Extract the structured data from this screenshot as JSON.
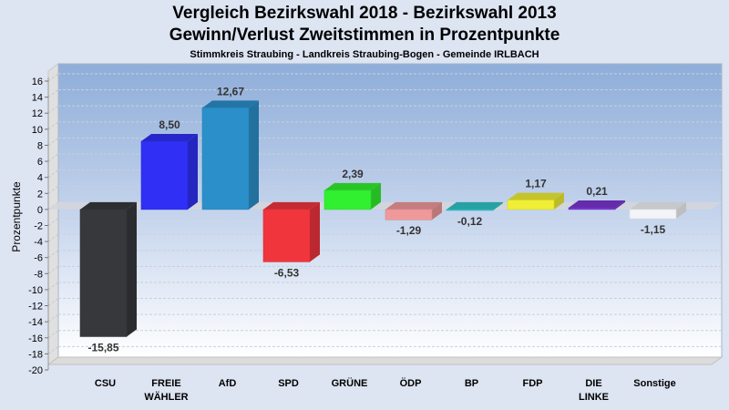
{
  "header": {
    "title_line1": "Vergleich Bezirkswahl 2018 - Bezirkswahl 2013",
    "title_line2": "Gewinn/Verlust Zweitstimmen in Prozentpunkte",
    "subtitle": "Stimmkreis Straubing - Landkreis Straubing-Bogen - Gemeinde IRLBACH"
  },
  "chart_data": {
    "type": "bar",
    "title": "Vergleich Bezirkswahl 2018 - Bezirkswahl 2013 / Gewinn/Verlust Zweitstimmen in Prozentpunkte",
    "subtitle": "Stimmkreis Straubing - Landkreis Straubing-Bogen - Gemeinde IRLBACH",
    "xlabel": "",
    "ylabel": "Prozentpunkte",
    "ylim": [
      -20,
      16
    ],
    "yticks": [
      16,
      14,
      12,
      10,
      8,
      6,
      4,
      2,
      0,
      -2,
      -4,
      -6,
      -8,
      -10,
      -12,
      -14,
      -16,
      -18,
      -20
    ],
    "grid": true,
    "categories": [
      {
        "line1": "CSU",
        "line2": ""
      },
      {
        "line1": "FREIE",
        "line2": "WÄHLER"
      },
      {
        "line1": "AfD",
        "line2": ""
      },
      {
        "line1": "SPD",
        "line2": ""
      },
      {
        "line1": "GRÜNE",
        "line2": ""
      },
      {
        "line1": "ÖDP",
        "line2": ""
      },
      {
        "line1": "BP",
        "line2": ""
      },
      {
        "line1": "FDP",
        "line2": ""
      },
      {
        "line1": "DIE",
        "line2": "LINKE"
      },
      {
        "line1": "Sonstige",
        "line2": ""
      }
    ],
    "values": [
      -15.85,
      8.5,
      12.67,
      -6.53,
      2.39,
      -1.29,
      -0.12,
      1.17,
      0.21,
      -1.15
    ],
    "value_labels": [
      "-15,85",
      "8,50",
      "12,67",
      "-6,53",
      "2,39",
      "-1,29",
      "-0,12",
      "1,17",
      "0,21",
      "-1,15"
    ],
    "colors": [
      "#36383c",
      "#2f2ff5",
      "#2b8fca",
      "#f0353d",
      "#31f02f",
      "#f0999a",
      "#30c4c8",
      "#f0ef35",
      "#7a35d0",
      "#f2f4f8"
    ]
  }
}
